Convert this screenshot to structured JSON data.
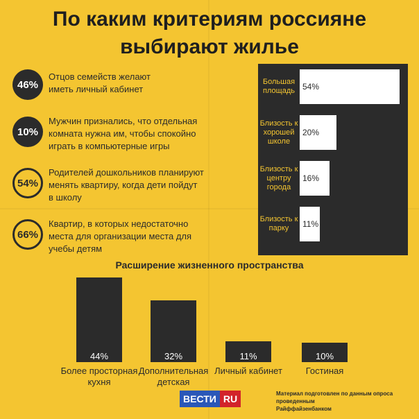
{
  "title": {
    "line1": "По каким критериям россияне",
    "line2": "выбирают жилье"
  },
  "stats": [
    {
      "value": "46%",
      "style": "filled",
      "lines": [
        "Отцов семейств желают",
        "иметь личный кабинет"
      ]
    },
    {
      "value": "10%",
      "style": "filled",
      "lines": [
        "Мужчин признались, что отдельная",
        "комната нужна им, чтобы спокойно",
        "играть в компьютерные игры"
      ]
    },
    {
      "value": "54%",
      "style": "outline",
      "lines": [
        "Родителей дошкольников планируют",
        "менять квартиру, когда дети пойдут",
        "в школу"
      ]
    },
    {
      "value": "66%",
      "style": "outline",
      "lines": [
        "Квартир, в которых недостаточно",
        "места для организации места для",
        "учебы детям"
      ]
    }
  ],
  "chart_data": [
    {
      "type": "bar",
      "orientation": "horizontal",
      "categories": [
        [
          "Большая",
          "площадь"
        ],
        [
          "Близость к",
          "хорошей",
          "школе"
        ],
        [
          "Близость к",
          "центру",
          "города"
        ],
        [
          "Близость к",
          "парку"
        ]
      ],
      "values": [
        54,
        20,
        16,
        11
      ],
      "value_labels": [
        "54%",
        "20%",
        "16%",
        "11%"
      ],
      "xlim": [
        0,
        54
      ],
      "colors": {
        "panel": "#2b2b2b",
        "bar": "#ffffff",
        "label": "#f4c531"
      }
    },
    {
      "type": "bar",
      "orientation": "vertical",
      "title": "Расширение жизненного пространства",
      "categories": [
        [
          "Более просторная",
          "кухня"
        ],
        [
          "Дополнительная",
          "детская"
        ],
        [
          "Личный кабинет"
        ],
        [
          "Гостиная"
        ]
      ],
      "values": [
        44,
        32,
        11,
        10
      ],
      "value_labels": [
        "44%",
        "32%",
        "11%",
        "10%"
      ],
      "ylim": [
        0,
        44
      ],
      "colors": {
        "bar": "#2b2b2b",
        "label": "#ffffff"
      }
    }
  ],
  "logo": {
    "part1": "ВЕСТИ",
    "part2": "RU"
  },
  "source": [
    "Материал подготовлен по данным опроса проведенным",
    "Райффайзенбанком"
  ]
}
